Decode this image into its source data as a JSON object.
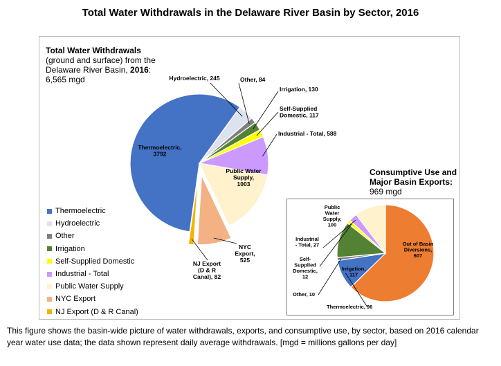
{
  "title": "Total Water Withdrawals in the Delaware River Basin by Sector, 2016",
  "left_panel": {
    "heading": "Total Water Withdrawals",
    "line2": "(ground and surface) from the",
    "line3_prefix": "Delaware River Basin, ",
    "line3_year": "2016",
    "line3_suffix": ":",
    "total": "6,565 mgd"
  },
  "right_panel": {
    "heading_line1": "Consumptive Use and",
    "heading_line2": "Major Basin Exports:",
    "total": "969 mgd"
  },
  "legend": [
    {
      "label": "Thermoelectric",
      "color": "#4472c4"
    },
    {
      "label": "Hydroelectric",
      "color": "#dce3ef"
    },
    {
      "label": "Other",
      "color": "#7f7f7f"
    },
    {
      "label": "Irrigation",
      "color": "#548235"
    },
    {
      "label": "Self-Supplied Domestic",
      "color": "#ffff00"
    },
    {
      "label": "Industrial - Total",
      "color": "#cc99ff"
    },
    {
      "label": "Public Water Supply",
      "color": "#fff2cc"
    },
    {
      "label": "NYC Export",
      "color": "#f4b183"
    },
    {
      "label": "NJ Export (D & R Canal)",
      "color": "#f4b400"
    }
  ],
  "chart_data": [
    {
      "type": "pie",
      "title": "Total Water Withdrawals (ground and surface) from the Delaware River Basin, 2016: 6,565 mgd",
      "unit": "mgd",
      "slices": [
        {
          "name": "Thermoelectric",
          "value": 3792,
          "label_lines": [
            "Thermoelectric,",
            "3792"
          ],
          "color": "#4472c4",
          "exploded": false
        },
        {
          "name": "Hydroelectric",
          "value": 245,
          "label_lines": [
            "Hydroelectric, 245"
          ],
          "color": "#dce3ef",
          "exploded": false
        },
        {
          "name": "Other",
          "value": 84,
          "label_lines": [
            "Other, 84"
          ],
          "color": "#7f7f7f",
          "exploded": false
        },
        {
          "name": "Irrigation",
          "value": 130,
          "label_lines": [
            "Irrigation, 130"
          ],
          "color": "#548235",
          "exploded": false
        },
        {
          "name": "Self-Supplied Domestic",
          "value": 117,
          "label_lines": [
            "Self-Supplied",
            "Domestic, 117"
          ],
          "color": "#ffff00",
          "exploded": false
        },
        {
          "name": "Industrial - Total",
          "value": 588,
          "label_lines": [
            "Industrial - Total, 588"
          ],
          "color": "#cc99ff",
          "exploded": false
        },
        {
          "name": "Public Water Supply",
          "value": 1003,
          "label_lines": [
            "Public Water",
            "Supply,",
            "1003"
          ],
          "color": "#fff2cc",
          "exploded": false
        },
        {
          "name": "NYC Export",
          "value": 525,
          "label_lines": [
            "NYC",
            "Export,",
            "525"
          ],
          "color": "#f4b183",
          "exploded": true
        },
        {
          "name": "NJ Export (D & R Canal)",
          "value": 82,
          "label_lines": [
            "NJ Export",
            "(D & R",
            "Canal), 82"
          ],
          "color": "#f4b400",
          "exploded": true
        }
      ]
    },
    {
      "type": "pie",
      "title": "Consumptive Use and Major Basin Exports: 969 mgd",
      "unit": "mgd",
      "slices": [
        {
          "name": "Out of Basin Diversions",
          "value": 607,
          "label_lines": [
            "Out of Basin",
            "Diversions,",
            "607"
          ],
          "color": "#ed7d31"
        },
        {
          "name": "Thermoelectric",
          "value": 96,
          "label_lines": [
            "Thermoelectric, 96"
          ],
          "color": "#4472c4"
        },
        {
          "name": "Other",
          "value": 10,
          "label_lines": [
            "Other, 10"
          ],
          "color": "#7f7f7f"
        },
        {
          "name": "Irrigation",
          "value": 117,
          "label_lines": [
            "Irrigation,",
            "117"
          ],
          "color": "#548235"
        },
        {
          "name": "Self-Supplied Domestic",
          "value": 12,
          "label_lines": [
            "Self-",
            "Supplied",
            "Domestic,",
            "12"
          ],
          "color": "#ffff00"
        },
        {
          "name": "Industrial - Total",
          "value": 27,
          "label_lines": [
            "Industrial",
            "- Total, 27"
          ],
          "color": "#cc99ff"
        },
        {
          "name": "Public Water Supply",
          "value": 100,
          "label_lines": [
            "Public",
            "Water",
            "Supply,",
            "100"
          ],
          "color": "#fff2cc"
        }
      ]
    }
  ],
  "caption": "This figure shows the basin-wide picture of water withdrawals, exports, and consumptive use, by sector, based on 2016 calendar year water use data; the data shown represent daily average withdrawals. [mgd = millions gallons per day]"
}
